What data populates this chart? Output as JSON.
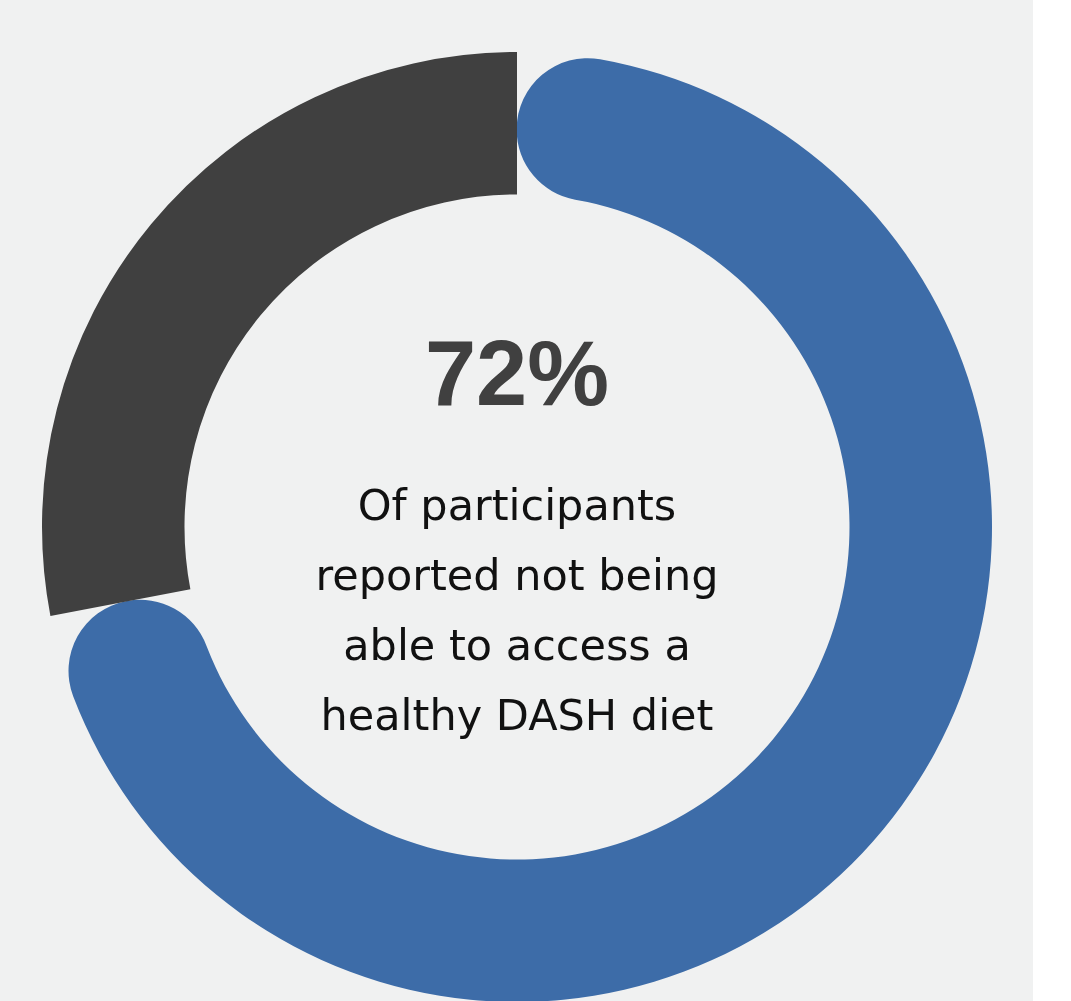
{
  "chart_data": {
    "type": "donut",
    "categories": [
      null,
      null
    ],
    "values": [
      72,
      28
    ],
    "colors": [
      "#3d6ca8",
      "#404040"
    ],
    "value_labels": [
      "72%",
      null
    ],
    "annotations": [
      "Of participants reported not being able to access a healthy DASH diet"
    ]
  }
}
